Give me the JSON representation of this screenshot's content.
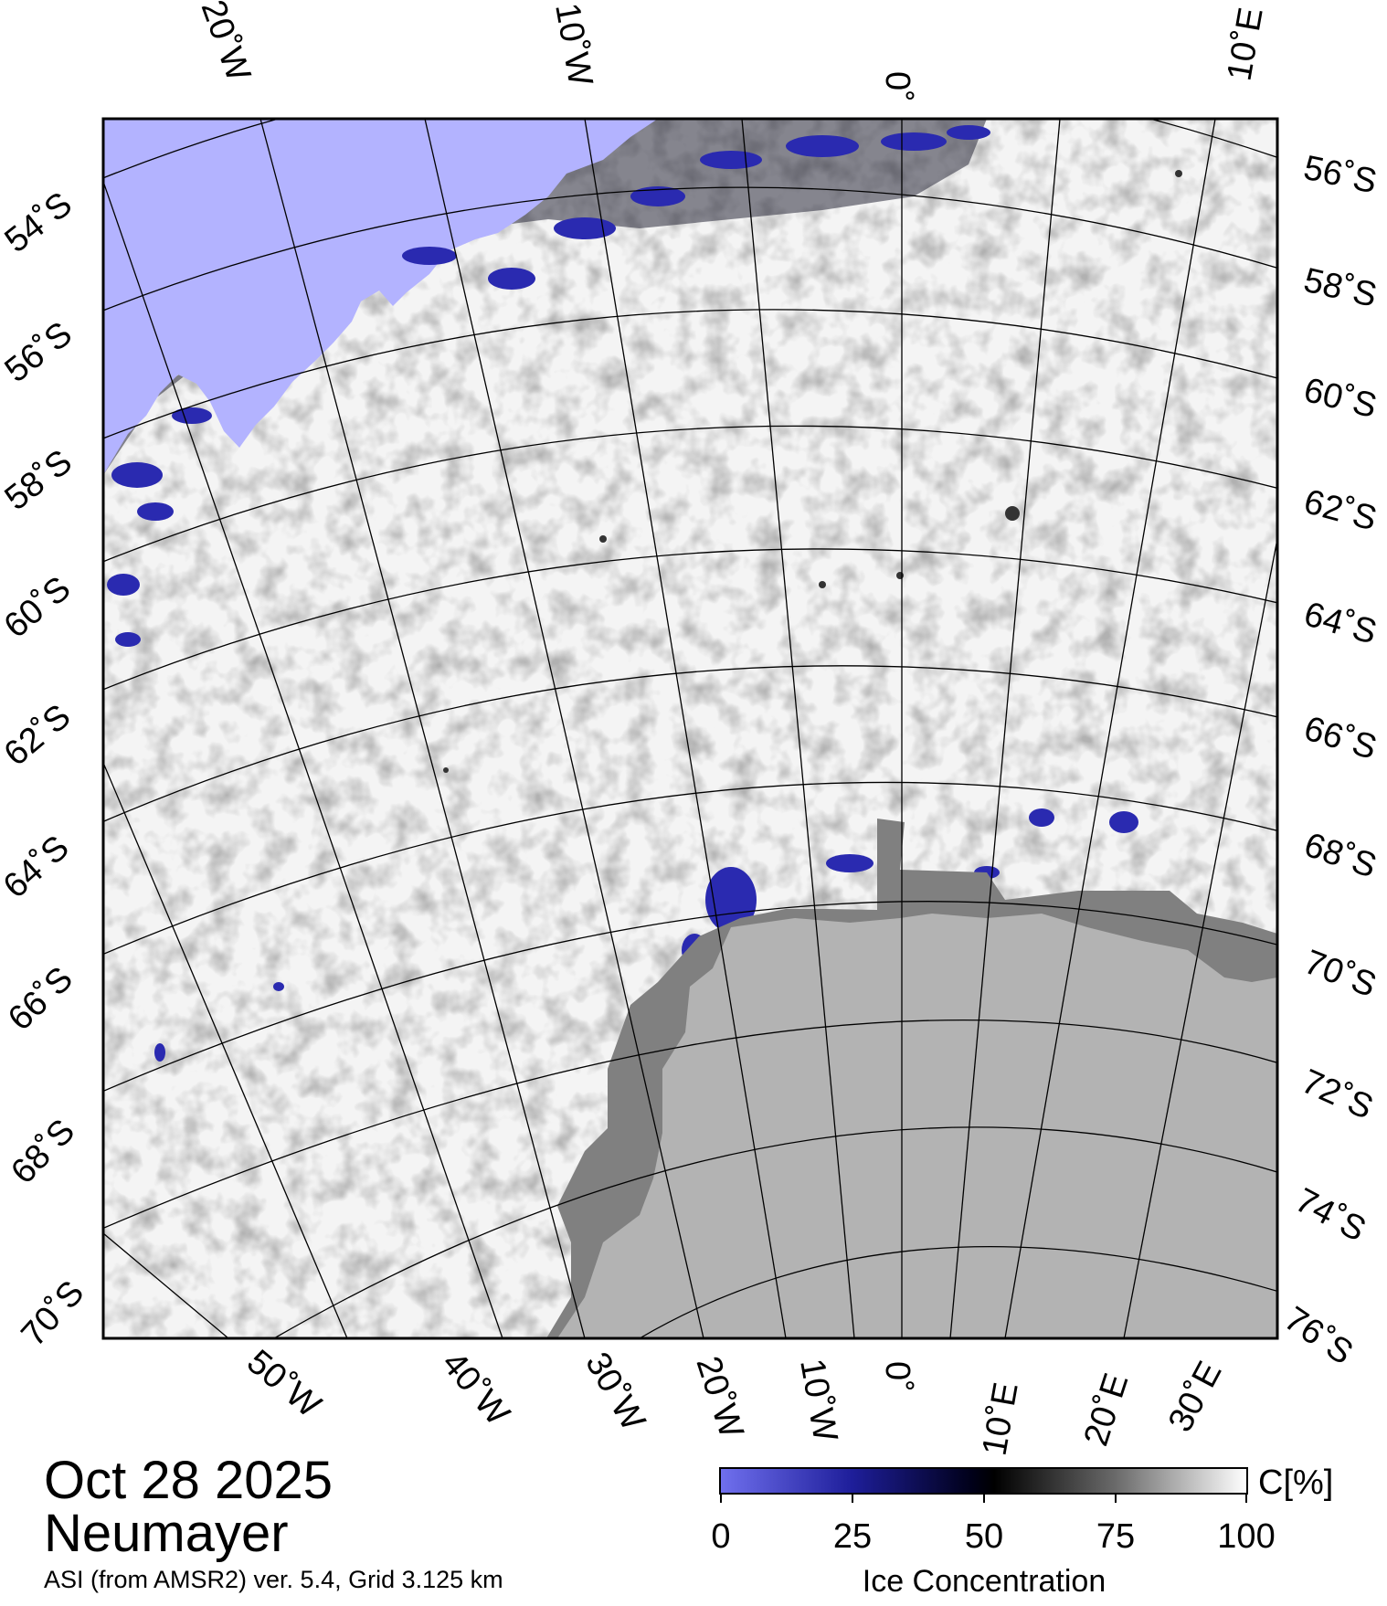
{
  "date": "Oct 28 2025",
  "station": "Neumayer",
  "product_info": "ASI (from AMSR2) ver. 5.4,  Grid 3.125 km",
  "top_lon_labels": [
    "20˚W",
    "10˚W",
    "0˚",
    "10˚E"
  ],
  "bottom_lon_labels": [
    "50˚W",
    "40˚W",
    "30˚W",
    "20˚W",
    "10˚W",
    "0˚",
    "10˚E",
    "20˚E",
    "30˚E"
  ],
  "left_lat_labels": [
    "54˚S",
    "56˚S",
    "58˚S",
    "60˚S",
    "62˚S",
    "64˚S",
    "66˚S",
    "68˚S",
    "70˚S"
  ],
  "right_lat_labels": [
    "56˚S",
    "58˚S",
    "60˚S",
    "62˚S",
    "64˚S",
    "66˚S",
    "68˚S",
    "70˚S",
    "72˚S",
    "74˚S",
    "76˚S"
  ],
  "colorbar": {
    "unit": "C[%]",
    "title": "Ice Concentration",
    "ticks": [
      "0",
      "25",
      "50",
      "75",
      "100"
    ],
    "stops": [
      "#7070ee",
      "#1e1e9a",
      "#000018",
      "#000000",
      "#6a6a6a",
      "#ffffff"
    ]
  },
  "colors": {
    "open_water": "#b3b3ff",
    "land": "#b3b3b3",
    "ice_shelf": "#808080",
    "sea_ice_high": "#f4f4f4"
  }
}
